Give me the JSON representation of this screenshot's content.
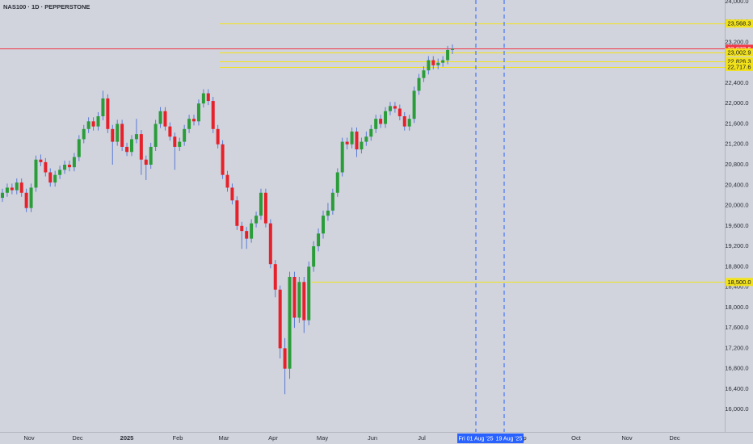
{
  "chart_data": {
    "type": "candlestick",
    "title": "NAS100 · 1D · PEPPERSTONE",
    "up_color": "#2a9d3a",
    "down_color": "#e6212b",
    "wick_color": "#5b7bd5",
    "open": [
      20150,
      20250,
      20350,
      20300,
      20450,
      20250,
      19950,
      20350,
      20900,
      20850,
      20650,
      20450,
      20600,
      20700,
      20800,
      20750,
      20950,
      21300,
      21500,
      21650,
      21550,
      21750,
      22100,
      21500,
      21250,
      21600,
      21150,
      21050,
      21300,
      21400,
      20900,
      20800,
      21150,
      21600,
      21850,
      21550,
      21350,
      21150,
      21250,
      21500,
      21700,
      21650,
      22000,
      22200,
      22050,
      21500,
      21200,
      20600,
      20350,
      20100,
      19600,
      19500,
      19350,
      19650,
      19800,
      20250,
      19650,
      18850,
      18350,
      17200,
      16800,
      18600,
      17800,
      18500,
      17750,
      18800,
      19200,
      19450,
      19800,
      19900,
      20250,
      20650,
      21250,
      21200,
      21450,
      21100,
      21250,
      21350,
      21500,
      21700,
      21600,
      21850,
      21950,
      21900,
      21750,
      21550,
      21700,
      22250,
      22500,
      22650,
      22850,
      22750,
      22800,
      22850,
      23050
    ],
    "high": [
      20330,
      20430,
      20430,
      20530,
      20530,
      20330,
      20430,
      20980,
      21000,
      20930,
      20730,
      20680,
      20780,
      20880,
      20880,
      21030,
      21380,
      21580,
      21730,
      21730,
      21830,
      22250,
      22180,
      21580,
      21680,
      21680,
      21230,
      21380,
      21700,
      21480,
      20980,
      21230,
      21680,
      21930,
      21930,
      21630,
      21430,
      21330,
      21580,
      21780,
      21780,
      22080,
      22280,
      22280,
      22130,
      21580,
      21280,
      20680,
      20430,
      20180,
      19680,
      19580,
      19730,
      19880,
      20330,
      20330,
      19730,
      18930,
      18430,
      17400,
      18700,
      18700,
      18600,
      18600,
      18900,
      19300,
      19550,
      19900,
      20050,
      20330,
      20730,
      21330,
      21330,
      21530,
      21530,
      21330,
      21450,
      21580,
      21780,
      21780,
      21930,
      22030,
      22030,
      21980,
      21830,
      21780,
      22330,
      22580,
      22730,
      22930,
      22930,
      22880,
      22930,
      23130,
      23160
    ],
    "low": [
      20070,
      20170,
      20220,
      20220,
      20170,
      19870,
      19870,
      20270,
      20770,
      20570,
      20370,
      20370,
      20520,
      20620,
      20670,
      20670,
      20870,
      21220,
      21420,
      21470,
      21470,
      21670,
      21420,
      20800,
      21170,
      21070,
      20970,
      20970,
      21220,
      20600,
      20500,
      20720,
      21070,
      21520,
      21470,
      21270,
      20700,
      21070,
      21170,
      21420,
      21570,
      21570,
      21920,
      21970,
      21420,
      21120,
      20520,
      20270,
      20020,
      19520,
      19150,
      19150,
      19270,
      19570,
      19720,
      19570,
      18770,
      18200,
      17000,
      16300,
      16600,
      17600,
      17700,
      17500,
      17650,
      18700,
      19100,
      19350,
      19700,
      19820,
      20170,
      20570,
      21100,
      21120,
      20950,
      21020,
      21170,
      21270,
      21420,
      21520,
      21520,
      21770,
      21820,
      21670,
      21470,
      21470,
      21620,
      22170,
      22420,
      22570,
      22670,
      22670,
      22720,
      22770,
      22970
    ],
    "close": [
      20250,
      20350,
      20300,
      20450,
      20250,
      19950,
      20350,
      20900,
      20850,
      20650,
      20450,
      20600,
      20700,
      20800,
      20750,
      20950,
      21300,
      21500,
      21650,
      21550,
      21750,
      22100,
      21500,
      21250,
      21600,
      21150,
      21050,
      21300,
      21400,
      20900,
      20800,
      21150,
      21600,
      21850,
      21550,
      21350,
      21150,
      21250,
      21500,
      21700,
      21650,
      22000,
      22200,
      22050,
      21500,
      21200,
      20600,
      20350,
      20100,
      19600,
      19500,
      19350,
      19650,
      19800,
      20250,
      19650,
      18850,
      18350,
      17200,
      16800,
      18600,
      17800,
      18500,
      17750,
      18800,
      19200,
      19450,
      19800,
      19900,
      20250,
      20650,
      21250,
      21200,
      21450,
      21100,
      21250,
      21350,
      21500,
      21700,
      21600,
      21850,
      21950,
      21900,
      21750,
      21550,
      21700,
      22250,
      22500,
      22650,
      22850,
      22750,
      22800,
      22850,
      23050,
      23073.6
    ],
    "ylim": [
      15560,
      24030
    ],
    "yticks": [
      {
        "value": 16000,
        "label": "16,000.0"
      },
      {
        "value": 16400,
        "label": "16,400.0"
      },
      {
        "value": 16800,
        "label": "16,800.0"
      },
      {
        "value": 17200,
        "label": "17,200.0"
      },
      {
        "value": 17600,
        "label": "17,600.0"
      },
      {
        "value": 18000,
        "label": "18,000.0"
      },
      {
        "value": 18400,
        "label": "18,400.0"
      },
      {
        "value": 18800,
        "label": "18,800.0"
      },
      {
        "value": 19200,
        "label": "19,200.0"
      },
      {
        "value": 19600,
        "label": "19,600.0"
      },
      {
        "value": 20000,
        "label": "20,000.0"
      },
      {
        "value": 20400,
        "label": "20,400.0"
      },
      {
        "value": 20800,
        "label": "20,800.0"
      },
      {
        "value": 21200,
        "label": "21,200.0"
      },
      {
        "value": 21600,
        "label": "21,600.0"
      },
      {
        "value": 22000,
        "label": "22,000.0"
      },
      {
        "value": 22400,
        "label": "22,400.0"
      },
      {
        "value": 22800,
        "label": "22,800.0"
      },
      {
        "value": 23200,
        "label": "23,200.0"
      },
      {
        "value": 23600,
        "label": "23,600.0"
      },
      {
        "value": 24000,
        "label": "24,000.0"
      }
    ],
    "xlabels": [
      "Nov",
      "Dec",
      "2025",
      "Feb",
      "Mar",
      "Apr",
      "May",
      "Jun",
      "Jul",
      "Sep",
      "Oct",
      "Nov",
      "Dec"
    ],
    "levels": [
      {
        "value": 23568.3,
        "label": "23,568.3",
        "color": "#f2e21a"
      },
      {
        "value": 23073.6,
        "label": "23,073.6",
        "color": "#f23645"
      },
      {
        "value": 23002.9,
        "label": "23,002.9",
        "color": "#f2e21a"
      },
      {
        "value": 22826.3,
        "label": "22,826.3",
        "color": "#f2e21a"
      },
      {
        "value": 22717.6,
        "label": "22,717.6",
        "color": "#f2e21a"
      },
      {
        "value": 18500.0,
        "label": "18,500.0",
        "color": "#f2e21a"
      }
    ],
    "markers": [
      {
        "label": "Fri 01 Aug '25",
        "color": "#2962ff"
      },
      {
        "label": "19 Aug '25",
        "color": "#2962ff"
      }
    ]
  }
}
